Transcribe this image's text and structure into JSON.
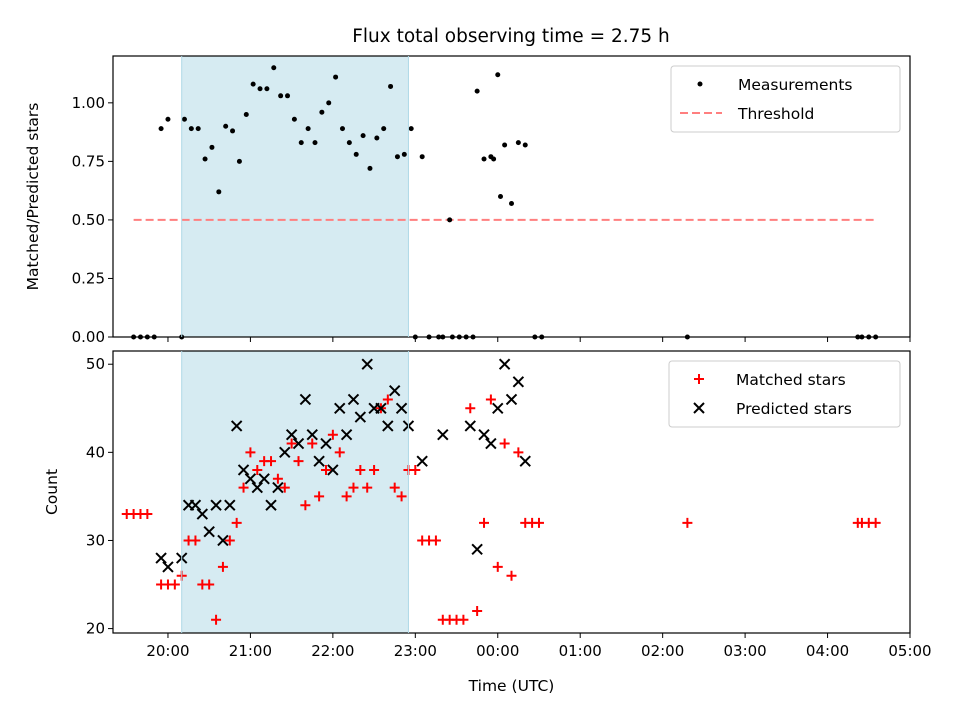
{
  "chart_data": [
    {
      "type": "scatter",
      "title": "Flux total observing time = 2.75 h",
      "xlabel": "",
      "ylabel": "Matched/Predicted stars",
      "ylim": [
        0,
        1.2
      ],
      "xlim": [
        "19:20",
        "05:00"
      ],
      "yticks": [
        "0.00",
        "0.25",
        "0.50",
        "0.75",
        "1.00"
      ],
      "highlight_window": {
        "start": "20:10",
        "end": "22:55",
        "color": "#add8e6"
      },
      "legend": {
        "position": "top-right",
        "entries": [
          "Measurements",
          "Threshold"
        ]
      },
      "threshold": {
        "name": "Threshold",
        "value": 0.5,
        "x_start": "19:35",
        "x_end": "04:35",
        "color": "#ff7f7f",
        "style": "dashed"
      },
      "series": [
        {
          "name": "Measurements",
          "color": "#000000",
          "marker": "dot",
          "points": [
            [
              "19:35",
              0
            ],
            [
              "19:40",
              0
            ],
            [
              "19:45",
              0
            ],
            [
              "19:50",
              0
            ],
            [
              "19:55",
              0.89
            ],
            [
              "20:00",
              0.93
            ],
            [
              "20:10",
              0
            ],
            [
              "20:12",
              0.93
            ],
            [
              "20:17",
              0.89
            ],
            [
              "20:22",
              0.89
            ],
            [
              "20:27",
              0.76
            ],
            [
              "20:32",
              0.81
            ],
            [
              "20:37",
              0.62
            ],
            [
              "20:42",
              0.9
            ],
            [
              "20:47",
              0.88
            ],
            [
              "20:52",
              0.75
            ],
            [
              "20:57",
              0.95
            ],
            [
              "21:02",
              1.08
            ],
            [
              "21:07",
              1.06
            ],
            [
              "21:12",
              1.06
            ],
            [
              "21:17",
              1.15
            ],
            [
              "21:22",
              1.03
            ],
            [
              "21:27",
              1.03
            ],
            [
              "21:32",
              0.93
            ],
            [
              "21:37",
              0.83
            ],
            [
              "21:42",
              0.89
            ],
            [
              "21:47",
              0.83
            ],
            [
              "21:52",
              0.96
            ],
            [
              "21:57",
              1.0
            ],
            [
              "22:02",
              1.11
            ],
            [
              "22:07",
              0.89
            ],
            [
              "22:12",
              0.83
            ],
            [
              "22:17",
              0.78
            ],
            [
              "22:22",
              0.86
            ],
            [
              "22:27",
              0.72
            ],
            [
              "22:32",
              0.85
            ],
            [
              "22:37",
              0.89
            ],
            [
              "22:42",
              1.07
            ],
            [
              "22:47",
              0.77
            ],
            [
              "22:52",
              0.78
            ],
            [
              "22:57",
              0.89
            ],
            [
              "23:00",
              0
            ],
            [
              "23:05",
              0.77
            ],
            [
              "23:10",
              0
            ],
            [
              "23:17",
              0
            ],
            [
              "23:20",
              0
            ],
            [
              "23:25",
              0.5
            ],
            [
              "23:27",
              0
            ],
            [
              "23:32",
              0
            ],
            [
              "23:37",
              0
            ],
            [
              "23:42",
              0
            ],
            [
              "23:45",
              1.05
            ],
            [
              "23:50",
              0.76
            ],
            [
              "23:55",
              0.77
            ],
            [
              "23:57",
              0.76
            ],
            [
              "00:00",
              1.12
            ],
            [
              "00:02",
              0.6
            ],
            [
              "00:05",
              0.82
            ],
            [
              "00:10",
              0.57
            ],
            [
              "00:15",
              0.83
            ],
            [
              "00:20",
              0.82
            ],
            [
              "00:27",
              0
            ],
            [
              "00:32",
              0
            ],
            [
              "02:18",
              0
            ],
            [
              "04:22",
              0
            ],
            [
              "04:25",
              0
            ],
            [
              "04:30",
              0
            ],
            [
              "04:35",
              0
            ]
          ]
        }
      ]
    },
    {
      "type": "scatter",
      "title": "",
      "xlabel": "Time (UTC)",
      "ylabel": "Count",
      "ylim": [
        19.5,
        51.5
      ],
      "xlim": [
        "19:20",
        "05:00"
      ],
      "yticks": [
        "20",
        "30",
        "40",
        "50"
      ],
      "xticks": [
        "20:00",
        "21:00",
        "22:00",
        "23:00",
        "00:00",
        "01:00",
        "02:00",
        "03:00",
        "04:00",
        "05:00"
      ],
      "highlight_window": {
        "start": "20:10",
        "end": "22:55",
        "color": "#add8e6"
      },
      "legend": {
        "position": "top-right",
        "entries": [
          "Matched stars",
          "Predicted stars"
        ]
      },
      "series": [
        {
          "name": "Matched stars",
          "color": "#ff0000",
          "marker": "plus",
          "points": [
            [
              "19:30",
              33
            ],
            [
              "19:35",
              33
            ],
            [
              "19:40",
              33
            ],
            [
              "19:45",
              33
            ],
            [
              "19:55",
              25
            ],
            [
              "20:00",
              25
            ],
            [
              "20:05",
              25
            ],
            [
              "20:10",
              26
            ],
            [
              "20:15",
              30
            ],
            [
              "20:20",
              30
            ],
            [
              "20:25",
              25
            ],
            [
              "20:30",
              25
            ],
            [
              "20:35",
              21
            ],
            [
              "20:40",
              27
            ],
            [
              "20:45",
              30
            ],
            [
              "20:50",
              32
            ],
            [
              "20:55",
              36
            ],
            [
              "21:00",
              40
            ],
            [
              "21:05",
              38
            ],
            [
              "21:10",
              39
            ],
            [
              "21:15",
              39
            ],
            [
              "21:20",
              37
            ],
            [
              "21:25",
              36
            ],
            [
              "21:30",
              41
            ],
            [
              "21:35",
              39
            ],
            [
              "21:40",
              34
            ],
            [
              "21:45",
              41
            ],
            [
              "21:50",
              35
            ],
            [
              "21:55",
              38
            ],
            [
              "22:00",
              42
            ],
            [
              "22:05",
              40
            ],
            [
              "22:10",
              35
            ],
            [
              "22:15",
              36
            ],
            [
              "22:20",
              38
            ],
            [
              "22:25",
              36
            ],
            [
              "22:30",
              38
            ],
            [
              "22:35",
              45
            ],
            [
              "22:40",
              46
            ],
            [
              "22:45",
              36
            ],
            [
              "22:50",
              35
            ],
            [
              "22:55",
              38
            ],
            [
              "23:00",
              38
            ],
            [
              "23:05",
              30
            ],
            [
              "23:10",
              30
            ],
            [
              "23:15",
              30
            ],
            [
              "23:20",
              21
            ],
            [
              "23:25",
              21
            ],
            [
              "23:30",
              21
            ],
            [
              "23:35",
              21
            ],
            [
              "23:40",
              45
            ],
            [
              "23:45",
              22
            ],
            [
              "23:50",
              32
            ],
            [
              "23:55",
              46
            ],
            [
              "00:00",
              27
            ],
            [
              "00:05",
              41
            ],
            [
              "00:10",
              26
            ],
            [
              "00:15",
              40
            ],
            [
              "00:20",
              32
            ],
            [
              "00:25",
              32
            ],
            [
              "00:30",
              32
            ],
            [
              "02:18",
              32
            ],
            [
              "04:22",
              32
            ],
            [
              "04:25",
              32
            ],
            [
              "04:30",
              32
            ],
            [
              "04:35",
              32
            ]
          ]
        },
        {
          "name": "Predicted stars",
          "color": "#000000",
          "marker": "x",
          "points": [
            [
              "19:55",
              28
            ],
            [
              "20:00",
              27
            ],
            [
              "20:10",
              28
            ],
            [
              "20:15",
              34
            ],
            [
              "20:20",
              34
            ],
            [
              "20:25",
              33
            ],
            [
              "20:30",
              31
            ],
            [
              "20:35",
              34
            ],
            [
              "20:40",
              30
            ],
            [
              "20:45",
              34
            ],
            [
              "20:50",
              43
            ],
            [
              "20:55",
              38
            ],
            [
              "21:00",
              37
            ],
            [
              "21:05",
              36
            ],
            [
              "21:10",
              37
            ],
            [
              "21:15",
              34
            ],
            [
              "21:20",
              36
            ],
            [
              "21:25",
              40
            ],
            [
              "21:30",
              42
            ],
            [
              "21:35",
              41
            ],
            [
              "21:40",
              46
            ],
            [
              "21:45",
              42
            ],
            [
              "21:50",
              39
            ],
            [
              "21:55",
              41
            ],
            [
              "22:00",
              38
            ],
            [
              "22:05",
              45
            ],
            [
              "22:10",
              42
            ],
            [
              "22:15",
              46
            ],
            [
              "22:20",
              44
            ],
            [
              "22:25",
              50
            ],
            [
              "22:30",
              45
            ],
            [
              "22:35",
              45
            ],
            [
              "22:40",
              43
            ],
            [
              "22:45",
              47
            ],
            [
              "22:50",
              45
            ],
            [
              "22:55",
              43
            ],
            [
              "23:05",
              39
            ],
            [
              "23:20",
              42
            ],
            [
              "23:40",
              43
            ],
            [
              "23:45",
              29
            ],
            [
              "23:50",
              42
            ],
            [
              "23:55",
              41
            ],
            [
              "00:00",
              45
            ],
            [
              "00:05",
              50
            ],
            [
              "00:10",
              46
            ],
            [
              "00:15",
              48
            ],
            [
              "00:20",
              39
            ]
          ]
        }
      ]
    }
  ]
}
